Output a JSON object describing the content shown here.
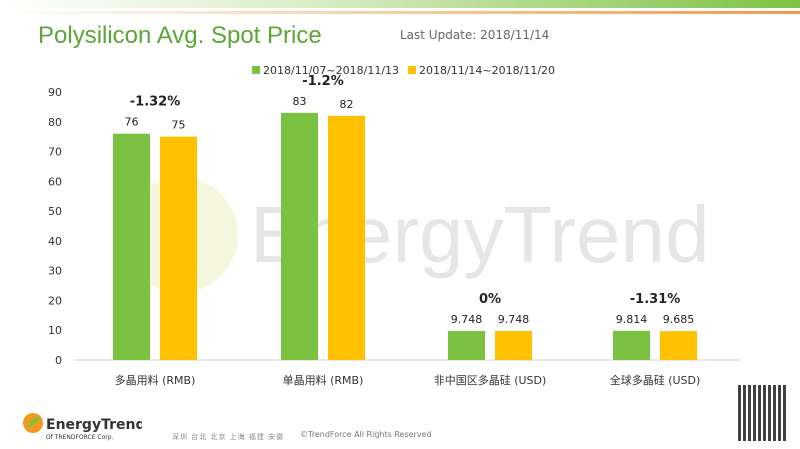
{
  "header": {
    "title": "Polysilicon Avg. Spot Price",
    "last_update": "Last Update: 2018/11/14"
  },
  "chart_data": {
    "type": "bar",
    "categories": [
      "多晶用料 (RMB)",
      "单晶用料 (RMB)",
      "非中国区多晶硅 (USD)",
      "全球多晶硅 (USD)"
    ],
    "series": [
      {
        "name": "2018/11/07~2018/11/13",
        "color": "#7cc242",
        "values": [
          76,
          83,
          9.748,
          9.814
        ],
        "labels": [
          "76",
          "83",
          "9.748",
          "9.814"
        ]
      },
      {
        "name": "2018/11/14~2018/11/20",
        "color": "#ffc000",
        "values": [
          75,
          82,
          9.748,
          9.685
        ],
        "labels": [
          "75",
          "82",
          "9.748",
          "9.685"
        ]
      }
    ],
    "changes": [
      "-1.32%",
      "-1.2%",
      "0%",
      "-1.31%"
    ],
    "yticks": [
      "0",
      "10",
      "20",
      "30",
      "40",
      "50",
      "60",
      "70",
      "80",
      "90"
    ],
    "ylim": [
      0,
      90
    ],
    "legend_position": "top"
  },
  "watermark": "EnergyTrend",
  "footer": {
    "logo": "EnergyTrend",
    "logo_sub": "Of TRENDFORCE Corp.",
    "cities": "深圳 台北 北京 上海 福建 安徽",
    "copyright": "©TrendForce All Rights Reserved"
  }
}
